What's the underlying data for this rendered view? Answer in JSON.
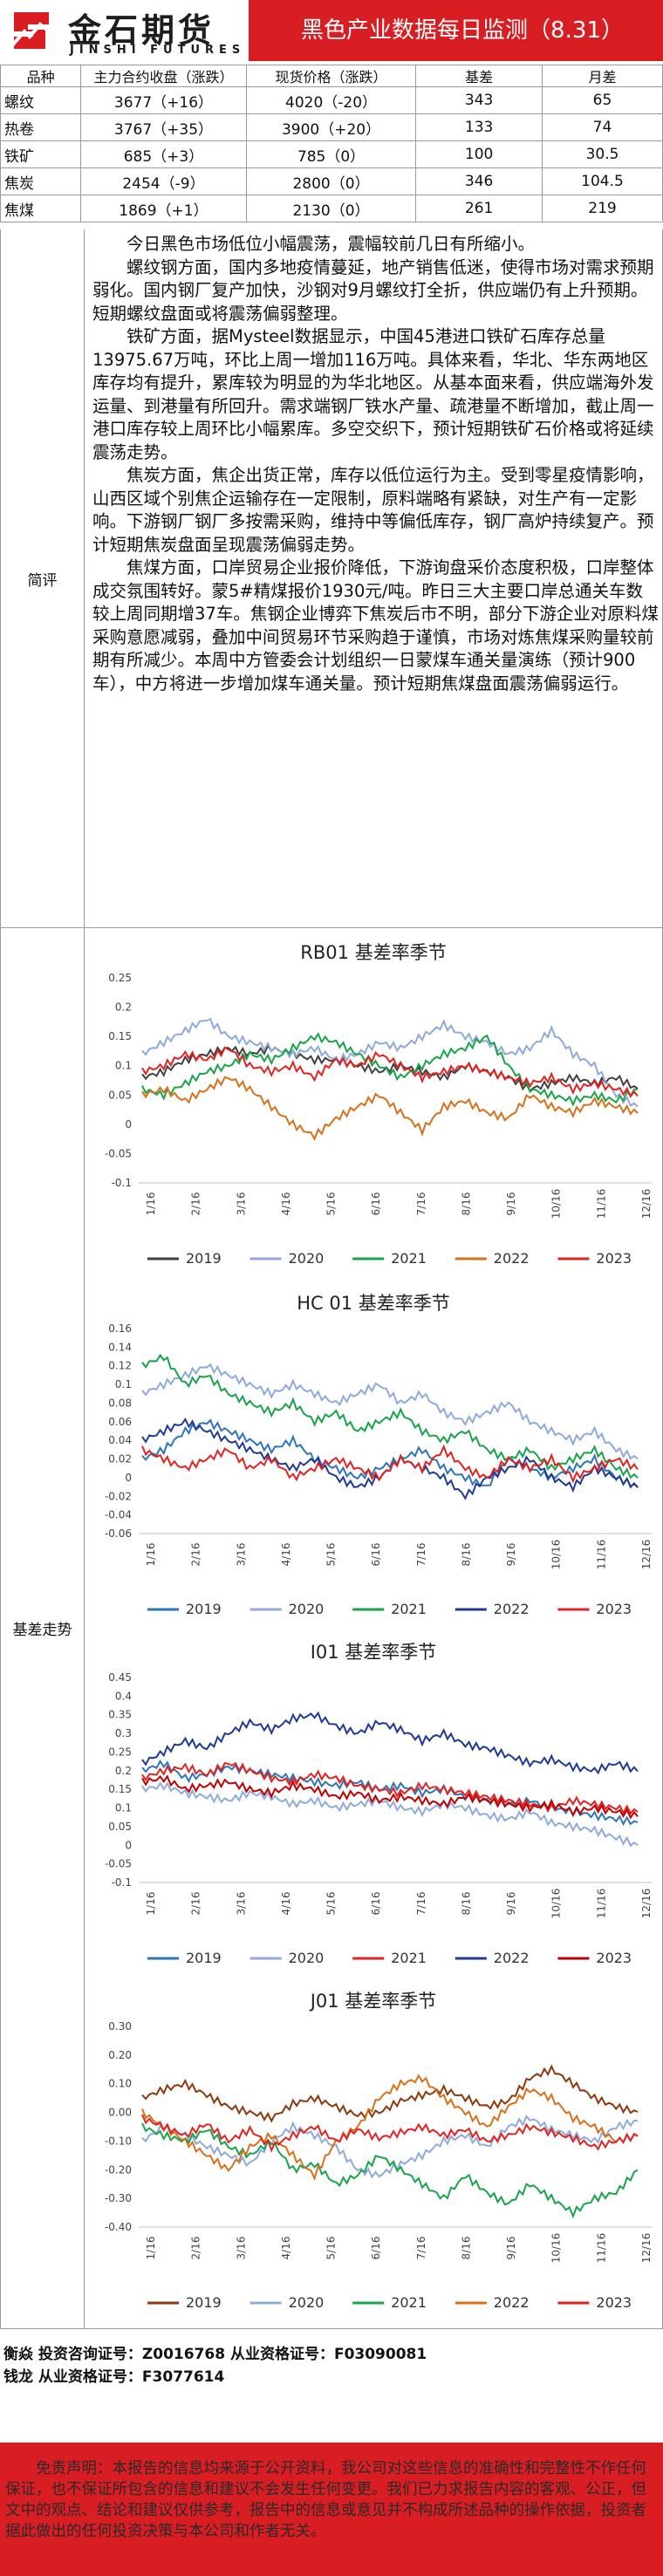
{
  "header": {
    "logo_cn": "金石期货",
    "logo_en": "JINSHI FUTURES",
    "title": "黑色产业数据每日监测（8.31）"
  },
  "price_table": {
    "headers": [
      "品种",
      "主力合约收盘（涨跌）",
      "现货价格（涨跌）",
      "基差",
      "月差"
    ],
    "rows": [
      [
        "螺纹",
        "3677（+16）",
        "4020（-20）",
        "343",
        "65"
      ],
      [
        "热卷",
        "3767（+35）",
        "3900（+20）",
        "133",
        "74"
      ],
      [
        "铁矿",
        "685（+3）",
        "785（0）",
        "100",
        "30.5"
      ],
      [
        "焦炭",
        "2454（-9）",
        "2800（0）",
        "346",
        "104.5"
      ],
      [
        "焦煤",
        "1869（+1）",
        "2130（0）",
        "261",
        "219"
      ]
    ]
  },
  "jianping": {
    "label": "简评",
    "paragraphs": [
      "今日黑色市场低位小幅震荡，震幅较前几日有所缩小。",
      "螺纹钢方面，国内多地疫情蔓延，地产销售低迷，使得市场对需求预期弱化。国内钢厂复产加快，沙钢对9月螺纹打全折，供应端仍有上升预期。短期螺纹盘面或将震荡偏弱整理。",
      "铁矿方面，据Mysteel数据显示，中国45港进口铁矿石库存总量13975.67万吨，环比上周一增加116万吨。具体来看，华北、华东两地区库存均有提升，累库较为明显的为华北地区。从基本面来看，供应端海外发运量、到港量有所回升。需求端钢厂铁水产量、疏港量不断增加，截止周一港口库存较上周环比小幅累库。多空交织下，预计短期铁矿石价格或将延续震荡走势。",
      "焦炭方面，焦企出货正常，库存以低位运行为主。受到零星疫情影响，山西区域个别焦企运输存在一定限制，原料端略有紧缺，对生产有一定影响。下游钢厂钢厂多按需采购，维持中等偏低库存，钢厂高炉持续复产。预计短期焦炭盘面呈现震荡偏弱走势。",
      "焦煤方面，口岸贸易企业报价降低，下游询盘采价态度积极，口岸整体成交氛围转好。蒙5#精煤报价1930元/吨。昨日三大主要口岸总通关车数较上周同期增37车。焦钢企业博弈下焦炭后市不明，部分下游企业对原料煤采购意愿减弱，叠加中间贸易环节采购趋于谨慎，市场对炼焦煤采购量较前期有所减少。本周中方管委会计划组织一日蒙煤车通关量演练（预计900车），中方将进一步增加煤车通关量。预计短期焦煤盘面震荡偏弱运行。"
    ]
  },
  "basis_section": {
    "label": "基差走势"
  },
  "colors": {
    "y2019": "#404040",
    "y2020": "#8eaadb",
    "y2021": "#19a34a",
    "y2022": "#d8701a",
    "y2023": "#e32222",
    "blue": "#2e75b6",
    "navy": "#1f3a93"
  },
  "chart_data": [
    {
      "type": "line",
      "title": "RB01 基差率季节",
      "x_ticks": [
        "1/16",
        "2/16",
        "3/16",
        "4/16",
        "5/16",
        "6/16",
        "7/16",
        "8/16",
        "9/16",
        "10/16",
        "11/16",
        "12/16"
      ],
      "y_ticks": [
        "0.25",
        "0.2",
        "0.15",
        "0.1",
        "0.05",
        "0",
        "-0.05",
        "-0.1"
      ],
      "ylim": [
        -0.1,
        0.25
      ],
      "series": [
        {
          "name": "2019",
          "color": "#404040",
          "values": [
            0.08,
            0.09,
            0.11,
            0.12,
            0.13,
            0.12,
            0.13,
            0.12,
            0.11,
            0.11,
            0.1,
            0.09,
            0.1,
            0.09,
            0.08,
            0.1,
            0.09,
            0.08,
            0.06,
            0.07,
            0.08,
            0.07,
            0.08,
            0.06
          ]
        },
        {
          "name": "2020",
          "color": "#8eaadb",
          "values": [
            0.12,
            0.14,
            0.16,
            0.18,
            0.15,
            0.14,
            0.13,
            0.12,
            0.13,
            0.11,
            0.12,
            0.14,
            0.13,
            0.15,
            0.17,
            0.15,
            0.14,
            0.12,
            0.13,
            0.16,
            0.12,
            0.1,
            0.05,
            0.03
          ]
        },
        {
          "name": "2021",
          "color": "#19a34a",
          "values": [
            0.06,
            0.05,
            0.07,
            0.09,
            0.1,
            0.12,
            0.11,
            0.13,
            0.15,
            0.14,
            0.12,
            0.1,
            0.08,
            0.1,
            0.12,
            0.13,
            0.15,
            0.1,
            0.06,
            0.05,
            0.04,
            0.05,
            0.04,
            0.06
          ]
        },
        {
          "name": "2022",
          "color": "#d8701a",
          "values": [
            0.05,
            0.06,
            0.04,
            0.06,
            0.08,
            0.06,
            0.03,
            0.0,
            -0.02,
            0.01,
            0.03,
            0.05,
            0.02,
            -0.01,
            0.03,
            0.04,
            0.02,
            0.01,
            0.05,
            0.03,
            0.02,
            0.04,
            0.03,
            0.02
          ]
        },
        {
          "name": "2023",
          "color": "#e32222",
          "values": [
            0.09,
            0.1,
            0.12,
            0.11,
            0.13,
            0.1,
            0.09,
            0.1,
            0.08,
            0.11,
            0.1,
            0.12,
            0.1,
            0.08,
            0.09,
            0.1,
            0.09,
            0.08,
            0.07,
            0.08,
            0.06,
            0.07,
            0.06,
            0.05
          ]
        }
      ]
    },
    {
      "type": "line",
      "title": "HC 01 基差率季节",
      "x_ticks": [
        "1/16",
        "2/16",
        "3/16",
        "4/16",
        "5/16",
        "6/16",
        "7/16",
        "8/16",
        "9/16",
        "10/16",
        "11/16",
        "12/16"
      ],
      "y_ticks": [
        "0.16",
        "0.14",
        "0.12",
        "0.1",
        "0.08",
        "0.06",
        "0.04",
        "0.02",
        "0",
        "-0.02",
        "-0.04",
        "-0.06"
      ],
      "ylim": [
        -0.06,
        0.16
      ],
      "series": [
        {
          "name": "2019",
          "color": "#2e75b6",
          "values": [
            0.02,
            0.03,
            0.05,
            0.06,
            0.05,
            0.04,
            0.03,
            0.04,
            0.02,
            0.01,
            0.0,
            0.01,
            0.02,
            0.03,
            0.01,
            0.0,
            -0.01,
            0.02,
            0.01,
            0.0,
            0.01,
            0.02,
            0.0,
            -0.01
          ]
        },
        {
          "name": "2020",
          "color": "#8eaadb",
          "values": [
            0.09,
            0.1,
            0.11,
            0.12,
            0.11,
            0.1,
            0.09,
            0.1,
            0.09,
            0.08,
            0.09,
            0.1,
            0.08,
            0.09,
            0.07,
            0.06,
            0.07,
            0.08,
            0.06,
            0.05,
            0.04,
            0.05,
            0.03,
            0.02
          ]
        },
        {
          "name": "2021",
          "color": "#19a34a",
          "values": [
            0.12,
            0.13,
            0.1,
            0.11,
            0.09,
            0.08,
            0.07,
            0.08,
            0.06,
            0.07,
            0.05,
            0.06,
            0.07,
            0.05,
            0.04,
            0.05,
            0.03,
            0.02,
            0.03,
            0.01,
            0.02,
            0.03,
            0.01,
            0.0
          ]
        },
        {
          "name": "2022",
          "color": "#1f3a93",
          "values": [
            0.04,
            0.05,
            0.06,
            0.05,
            0.04,
            0.03,
            0.02,
            0.01,
            0.02,
            0.0,
            -0.01,
            0.0,
            0.02,
            0.01,
            0.0,
            -0.02,
            0.0,
            0.01,
            0.02,
            0.0,
            -0.01,
            0.01,
            0.0,
            -0.01
          ]
        },
        {
          "name": "2023",
          "color": "#e32222",
          "values": [
            0.03,
            0.02,
            0.01,
            0.02,
            0.03,
            0.01,
            0.02,
            0.0,
            0.01,
            0.02,
            0.01,
            0.0,
            0.02,
            0.01,
            0.03,
            0.01,
            0.0,
            0.02,
            0.01,
            0.02,
            0.0,
            0.01,
            0.02,
            0.01
          ]
        }
      ]
    },
    {
      "type": "line",
      "title": "I01 基差率季节",
      "x_ticks": [
        "1/16",
        "2/16",
        "3/16",
        "4/16",
        "5/16",
        "6/16",
        "7/16",
        "8/16",
        "9/16",
        "10/16",
        "11/16",
        "12/16"
      ],
      "y_ticks": [
        "0.45",
        "0.4",
        "0.35",
        "0.3",
        "0.25",
        "0.2",
        "0.15",
        "0.1",
        "0.05",
        "0",
        "-0.05",
        "-0.1"
      ],
      "ylim": [
        -0.1,
        0.45
      ],
      "series": [
        {
          "name": "2019",
          "color": "#2e75b6",
          "values": [
            0.2,
            0.22,
            0.18,
            0.19,
            0.21,
            0.2,
            0.19,
            0.18,
            0.17,
            0.16,
            0.17,
            0.15,
            0.16,
            0.14,
            0.15,
            0.13,
            0.12,
            0.11,
            0.12,
            0.1,
            0.09,
            0.08,
            0.07,
            0.06
          ]
        },
        {
          "name": "2020",
          "color": "#8eaadb",
          "values": [
            0.15,
            0.16,
            0.14,
            0.13,
            0.12,
            0.14,
            0.13,
            0.11,
            0.12,
            0.1,
            0.11,
            0.12,
            0.1,
            0.09,
            0.11,
            0.1,
            0.08,
            0.07,
            0.09,
            0.06,
            0.05,
            0.04,
            0.02,
            0.0
          ]
        },
        {
          "name": "2021",
          "color": "#e32222",
          "values": [
            0.18,
            0.2,
            0.21,
            0.19,
            0.22,
            0.2,
            0.18,
            0.17,
            0.19,
            0.18,
            0.16,
            0.15,
            0.14,
            0.16,
            0.15,
            0.14,
            0.13,
            0.12,
            0.11,
            0.1,
            0.12,
            0.11,
            0.1,
            0.09
          ]
        },
        {
          "name": "2022",
          "color": "#1f3a93",
          "values": [
            0.22,
            0.25,
            0.28,
            0.26,
            0.3,
            0.33,
            0.31,
            0.34,
            0.35,
            0.32,
            0.3,
            0.33,
            0.31,
            0.28,
            0.3,
            0.27,
            0.26,
            0.24,
            0.22,
            0.23,
            0.21,
            0.2,
            0.22,
            0.2
          ]
        },
        {
          "name": "2023",
          "color": "#c00000",
          "values": [
            0.17,
            0.18,
            0.15,
            0.16,
            0.17,
            0.15,
            0.14,
            0.16,
            0.15,
            0.13,
            0.14,
            0.12,
            0.13,
            0.12,
            0.11,
            0.13,
            0.12,
            0.11,
            0.1,
            0.11,
            0.09,
            0.1,
            0.09,
            0.08
          ]
        }
      ]
    },
    {
      "type": "line",
      "title": "J01 基差率季节",
      "x_ticks": [
        "1/16",
        "2/16",
        "3/16",
        "4/16",
        "5/16",
        "6/16",
        "7/16",
        "8/16",
        "9/16",
        "10/16",
        "11/16",
        "12/16"
      ],
      "y_ticks": [
        "0.30",
        "0.20",
        "0.10",
        "0.00",
        "-0.10",
        "-0.20",
        "-0.30",
        "-0.40"
      ],
      "ylim": [
        -0.4,
        0.3
      ],
      "series": [
        {
          "name": "2019",
          "color": "#8b3a0e",
          "values": [
            0.05,
            0.08,
            0.1,
            0.06,
            0.02,
            0.0,
            -0.02,
            0.03,
            0.05,
            0.02,
            -0.01,
            0.0,
            0.04,
            0.06,
            0.08,
            0.05,
            0.02,
            0.04,
            0.12,
            0.15,
            0.1,
            0.05,
            0.02,
            0.0
          ]
        },
        {
          "name": "2020",
          "color": "#8eaadb",
          "values": [
            -0.1,
            -0.05,
            -0.08,
            -0.12,
            -0.15,
            -0.18,
            -0.1,
            -0.05,
            -0.08,
            -0.12,
            -0.2,
            -0.22,
            -0.18,
            -0.15,
            -0.1,
            -0.08,
            -0.12,
            -0.05,
            -0.02,
            -0.06,
            -0.08,
            -0.1,
            -0.05,
            -0.03
          ]
        },
        {
          "name": "2021",
          "color": "#19a34a",
          "values": [
            -0.05,
            -0.08,
            -0.1,
            -0.06,
            -0.12,
            -0.15,
            -0.1,
            -0.2,
            -0.18,
            -0.25,
            -0.22,
            -0.15,
            -0.2,
            -0.25,
            -0.3,
            -0.22,
            -0.28,
            -0.32,
            -0.25,
            -0.3,
            -0.35,
            -0.3,
            -0.28,
            -0.2
          ]
        },
        {
          "name": "2022",
          "color": "#d8701a",
          "values": [
            0.0,
            -0.05,
            -0.1,
            -0.15,
            -0.2,
            -0.12,
            -0.08,
            -0.15,
            -0.22,
            -0.1,
            -0.05,
            0.05,
            0.1,
            0.12,
            0.05,
            0.0,
            -0.05,
            0.02,
            0.08,
            0.05,
            -0.02,
            -0.05,
            -0.1,
            -0.08
          ]
        },
        {
          "name": "2023",
          "color": "#e32222",
          "values": [
            -0.02,
            -0.05,
            -0.08,
            -0.04,
            -0.1,
            -0.06,
            -0.12,
            -0.08,
            -0.05,
            -0.1,
            -0.06,
            -0.09,
            -0.07,
            -0.05,
            -0.08,
            -0.06,
            -0.1,
            -0.08,
            -0.05,
            -0.07,
            -0.09,
            -0.12,
            -0.1,
            -0.08
          ]
        }
      ]
    }
  ],
  "analysts": [
    "衡焱 投资咨询证号：Z0016768 从业资格证号：F03090081",
    "钱龙 从业资格证号：F3077614"
  ],
  "disclaimer": "免责声明：本报告的信息均来源于公开资料，我公司对这些信息的准确性和完整性不作任何保证，也不保证所包含的信息和建议不会发生任何变更。我们已力求报告内容的客观、公正，但文中的观点、结论和建议仅供参考，报告中的信息或意见并不构成所述品种的操作依据，投资者据此做出的任何投资决策与本公司和作者无关。"
}
